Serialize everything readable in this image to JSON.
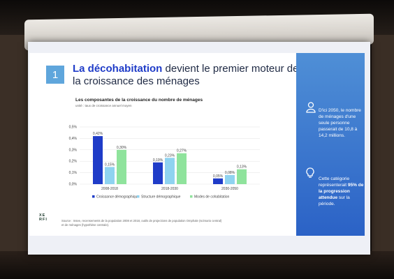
{
  "slide": {
    "number": "1",
    "title_bold": "La décohabitation",
    "title_rest": " devient le premier moteur de la croissance des ménages",
    "chart_title": "Les composantes de la croissance du nombre de ménages",
    "chart_subtitle": "unité : taux de croissance annuel moyen",
    "source": "Source : Insee, recensements de la population 2008 et 2018, outils de projections de population Omphale (scénario central) et de ménages (hypothèse centrale).",
    "logo": "XE RFI",
    "panel": {
      "text1": "D'ici 2050, le nombre de ménages d'une seule personne passerait de 10,8 à 14,2 millions.",
      "text2_pre": "Cette catégorie représenterait ",
      "text2_bold": "95% de la progression attendue",
      "text2_post": " sur la période."
    }
  },
  "chart_data": {
    "type": "bar",
    "title": "Les composantes de la croissance du nombre de ménages",
    "subtitle": "unité : taux de croissance annuel moyen",
    "categories": [
      "2008-2018",
      "2018-2030",
      "2030-2050"
    ],
    "series": [
      {
        "name": "Croissance démographique",
        "color": "#1f3cc8",
        "values": [
          0.42,
          0.19,
          0.05
        ],
        "labels": [
          "0,42%",
          "0,19%",
          "0,05%"
        ]
      },
      {
        "name": "Structure démographique",
        "color": "#8fd3f0",
        "values": [
          0.15,
          0.23,
          0.08
        ],
        "labels": [
          "0,15%",
          "0,23%",
          "0,08%"
        ]
      },
      {
        "name": "Modes de cohabitation",
        "color": "#8fe39c",
        "values": [
          0.3,
          0.27,
          0.13
        ],
        "labels": [
          "0,30%",
          "0,27%",
          "0,13%"
        ]
      }
    ],
    "yticks": [
      "0,0%",
      "0,1%",
      "0,2%",
      "0,3%",
      "0,4%",
      "0,5%"
    ],
    "ylim": [
      0,
      0.5
    ],
    "legend_position": "bottom"
  }
}
